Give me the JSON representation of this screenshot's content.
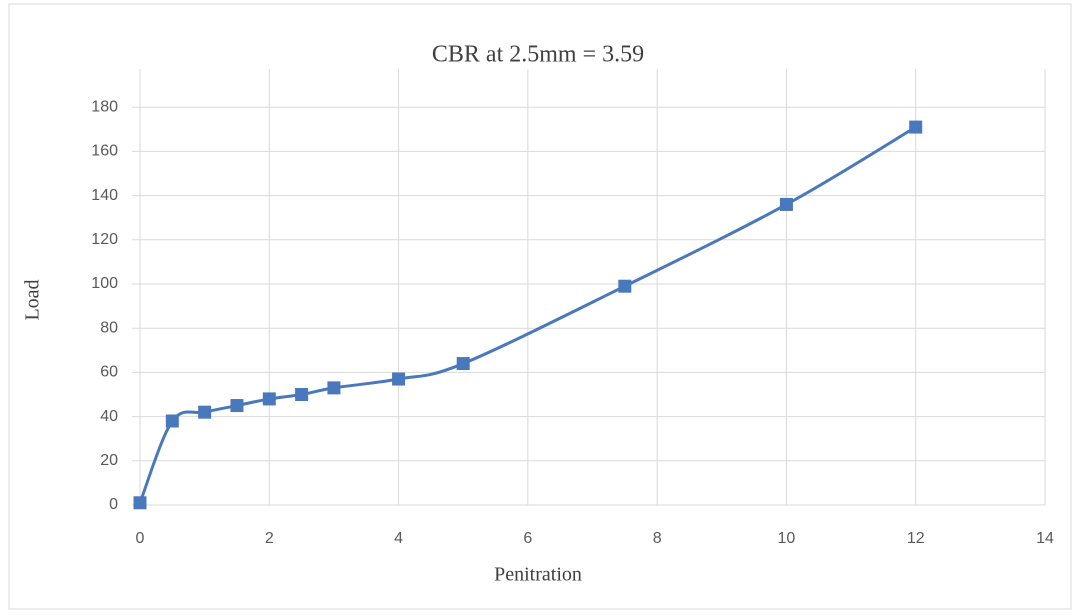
{
  "chart_data": {
    "type": "line",
    "title": "CBR at 2.5mm = 3.59",
    "x_label": "Penitration",
    "y_label": "Load",
    "x": [
      0,
      0.5,
      1,
      1.5,
      2,
      2.5,
      3,
      4,
      5,
      7.5,
      10,
      12
    ],
    "series": [
      {
        "name": "Load",
        "color": "#4a78bc",
        "values": [
          1,
          38,
          42,
          45,
          48,
          50,
          53,
          57,
          64,
          99,
          136,
          171
        ]
      }
    ],
    "xlim": [
      0,
      14
    ],
    "xticks": [
      0,
      2,
      4,
      6,
      8,
      10,
      12,
      14
    ],
    "ylim": [
      0,
      200
    ],
    "yticks": [
      0,
      20,
      40,
      60,
      80,
      100,
      120,
      140,
      160,
      180
    ],
    "grid": true,
    "smooth": true
  }
}
